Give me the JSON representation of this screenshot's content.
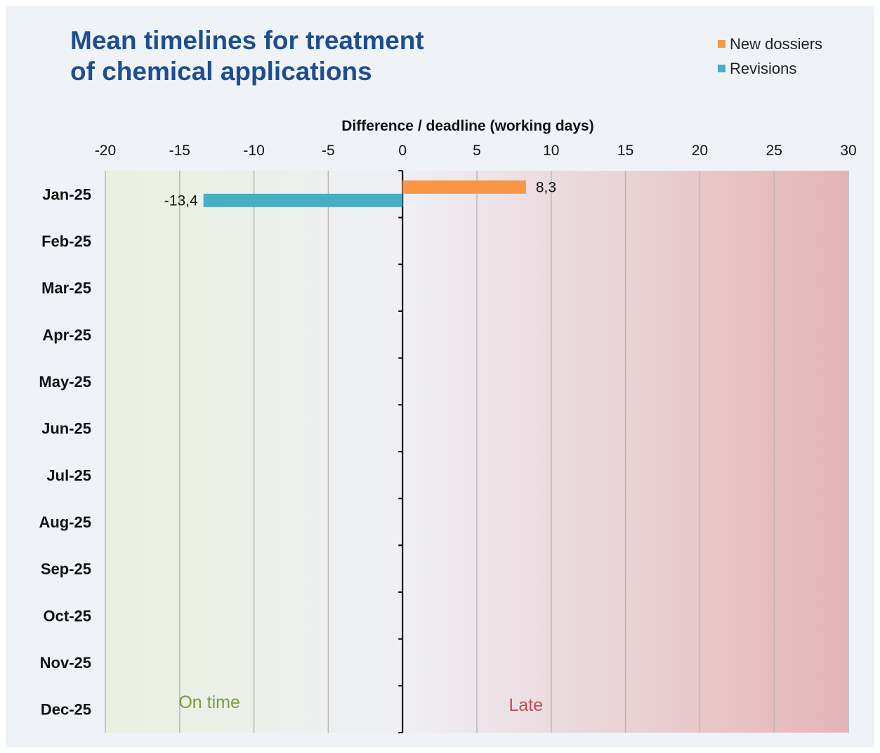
{
  "title": {
    "line1": "Mean timelines for treatment",
    "line2": "of chemical applications"
  },
  "colors": {
    "title": "#1f4e8c",
    "background": "#eff3f8",
    "on_time_zone": "#e9f0df",
    "late_zone": "#e4b4b6",
    "grid": "#b7b7b7",
    "on_time_text": "#7a9a3c",
    "late_text": "#c0504d"
  },
  "chart_data": {
    "type": "bar",
    "orientation": "horizontal",
    "xlabel": "Difference / deadline (working days)",
    "xlim": [
      -20,
      30
    ],
    "xticks": [
      -20,
      -15,
      -10,
      -5,
      0,
      5,
      10,
      15,
      20,
      25,
      30
    ],
    "x_axis_position": "top",
    "grid": true,
    "legend_position": "top-right",
    "categories": [
      "Jan-25",
      "Feb-25",
      "Mar-25",
      "Apr-25",
      "May-25",
      "Jun-25",
      "Jul-25",
      "Aug-25",
      "Sep-25",
      "Oct-25",
      "Nov-25",
      "Dec-25"
    ],
    "series": [
      {
        "name": "New dossiers",
        "color": "#f79646",
        "values": [
          8.3,
          null,
          null,
          null,
          null,
          null,
          null,
          null,
          null,
          null,
          null,
          null
        ],
        "labels": [
          "8,3"
        ]
      },
      {
        "name": "Revisions",
        "color": "#4bacc6",
        "values": [
          -13.4,
          null,
          null,
          null,
          null,
          null,
          null,
          null,
          null,
          null,
          null,
          null
        ],
        "labels": [
          "-13,4"
        ]
      }
    ],
    "annotations": [
      {
        "text": "On time",
        "x": -13
      },
      {
        "text": "Late",
        "x": 8.3
      }
    ]
  }
}
